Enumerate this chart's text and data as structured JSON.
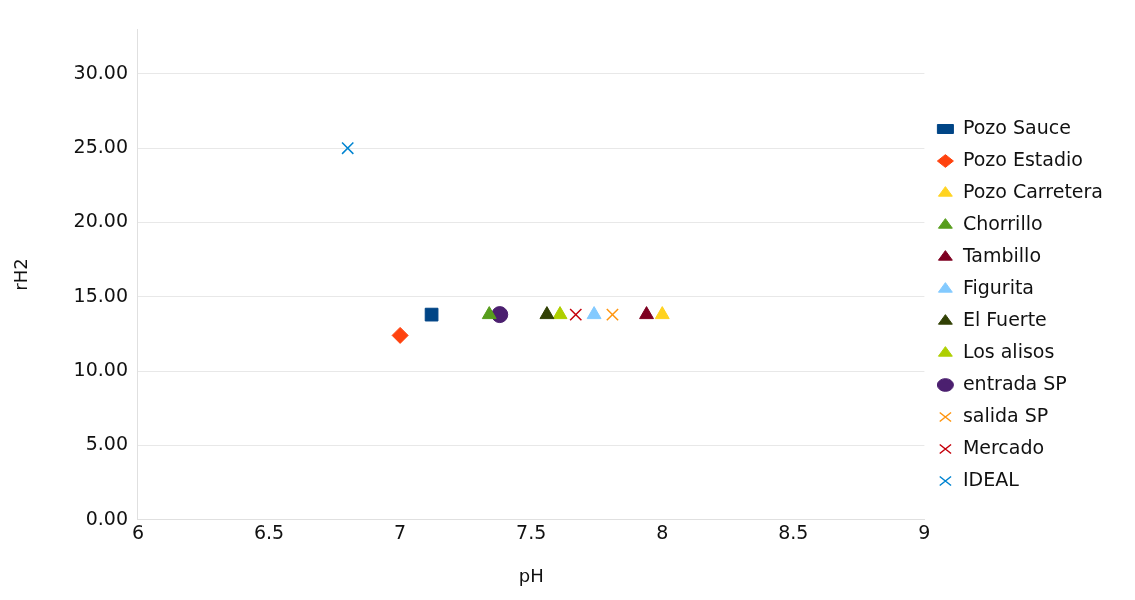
{
  "chart_data": {
    "type": "scatter",
    "xlabel": "pH",
    "ylabel": "rH2",
    "xlim": [
      6,
      9
    ],
    "xticks": [
      6,
      6.5,
      7,
      7.5,
      8,
      8.5,
      9
    ],
    "ylim": [
      0,
      33
    ],
    "yticks": [
      {
        "value": 0,
        "label": "0.00"
      },
      {
        "value": 5,
        "label": "5.00"
      },
      {
        "value": 10,
        "label": "10.00"
      },
      {
        "value": 15,
        "label": "15.00"
      },
      {
        "value": 20,
        "label": "20.00"
      },
      {
        "value": 25,
        "label": "25.00"
      },
      {
        "value": 30,
        "label": "30.00"
      }
    ],
    "grid": "y",
    "legend": "right",
    "series": [
      {
        "name": "Pozo Sauce",
        "color": "#004586",
        "marker": "square",
        "x": [
          7.12
        ],
        "values": [
          13.8
        ]
      },
      {
        "name": "Pozo Estadio",
        "color": "#ff420e",
        "marker": "diamond",
        "x": [
          7.0
        ],
        "values": [
          12.4
        ]
      },
      {
        "name": "Pozo Carretera",
        "color": "#ffd320",
        "marker": "triangle",
        "x": [
          8.0
        ],
        "values": [
          13.8
        ]
      },
      {
        "name": "Chorrillo",
        "color": "#579d1c",
        "marker": "triangle",
        "x": [
          7.34
        ],
        "values": [
          13.8
        ]
      },
      {
        "name": "Tambillo",
        "color": "#7e0021",
        "marker": "triangle",
        "x": [
          7.94
        ],
        "values": [
          13.8
        ]
      },
      {
        "name": "Figurita",
        "color": "#83caff",
        "marker": "triangle",
        "x": [
          7.74
        ],
        "values": [
          13.8
        ]
      },
      {
        "name": "El Fuerte",
        "color": "#314004",
        "marker": "triangle",
        "x": [
          7.56
        ],
        "values": [
          13.8
        ]
      },
      {
        "name": "Los alisos",
        "color": "#aecf00",
        "marker": "triangle",
        "x": [
          7.61
        ],
        "values": [
          13.8
        ]
      },
      {
        "name": "entrada SP",
        "color": "#4b1f6f",
        "marker": "circle",
        "x": [
          7.38
        ],
        "values": [
          13.8
        ]
      },
      {
        "name": "salida SP",
        "color": "#ff950e",
        "marker": "cross",
        "x": [
          7.81
        ],
        "values": [
          13.8
        ]
      },
      {
        "name": "Mercado",
        "color": "#c5000b",
        "marker": "cross",
        "x": [
          7.67
        ],
        "values": [
          13.8
        ]
      },
      {
        "name": "IDEAL",
        "color": "#0084d1",
        "marker": "cross",
        "x": [
          6.8
        ],
        "values": [
          25.0
        ]
      }
    ]
  }
}
